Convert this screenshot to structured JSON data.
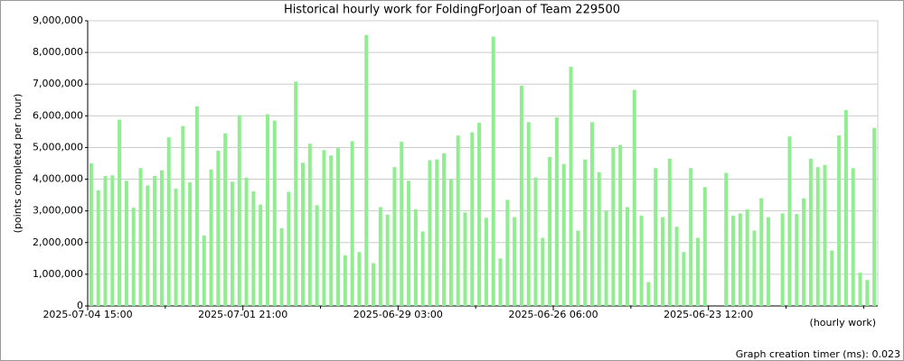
{
  "chart_data": {
    "type": "bar",
    "title": "Historical hourly work for FoldingForJoan of Team 229500",
    "y_label": "(points completed per hour)",
    "x_label": "(hourly work)",
    "footer": "Graph creation timer (ms): 0.023",
    "color": "#90ee90",
    "grid": true,
    "ylim": [
      0,
      9000000
    ],
    "yticks": [
      0,
      {
        "value": 1000000,
        "label": "1,000,000"
      },
      {
        "value": 2000000,
        "label": "2,000,000"
      },
      {
        "value": 3000000,
        "label": "3,000,000"
      },
      {
        "value": 4000000,
        "label": "4,000,000"
      },
      {
        "value": 5000000,
        "label": "5,000,000"
      },
      {
        "value": 6000000,
        "label": "6,000,000"
      },
      {
        "value": 7000000,
        "label": "7,000,000"
      },
      {
        "value": 8000000,
        "label": "8,000,000"
      },
      {
        "value": 9000000,
        "label": "9,000,000"
      }
    ],
    "categories": [
      "2025-07-04 15:00",
      null,
      null,
      null,
      null,
      null,
      null,
      null,
      null,
      null,
      null,
      null,
      null,
      null,
      null,
      null,
      null,
      null,
      null,
      null,
      null,
      null,
      "2025-07-01 21:00",
      null,
      null,
      null,
      null,
      null,
      null,
      null,
      null,
      null,
      null,
      null,
      null,
      null,
      null,
      null,
      null,
      null,
      null,
      null,
      null,
      null,
      "2025-06-29 03:00",
      null,
      null,
      null,
      null,
      null,
      null,
      null,
      null,
      null,
      null,
      null,
      null,
      null,
      null,
      null,
      null,
      null,
      null,
      null,
      null,
      null,
      "2025-06-26 06:00",
      null,
      null,
      null,
      null,
      null,
      null,
      null,
      null,
      null,
      null,
      null,
      null,
      null,
      null,
      null,
      null,
      null,
      null,
      null,
      null,
      null,
      "2025-06-23 12:00",
      null,
      null,
      null,
      null,
      null,
      null,
      null,
      null,
      null,
      null,
      null,
      null,
      null,
      null,
      null,
      null,
      null,
      null,
      null,
      null,
      null,
      null,
      null
    ],
    "values": [
      4500000,
      3650000,
      4100000,
      4120000,
      5880000,
      3950000,
      3100000,
      4350000,
      3800000,
      4100000,
      4280000,
      5320000,
      3700000,
      5680000,
      3900000,
      6300000,
      2220000,
      4300000,
      4900000,
      5450000,
      3920000,
      6020000,
      4050000,
      3620000,
      3200000,
      6050000,
      5850000,
      2450000,
      3600000,
      7080000,
      4520000,
      5120000,
      3180000,
      4920000,
      4750000,
      4980000,
      1600000,
      5200000,
      1700000,
      8550000,
      1350000,
      3120000,
      2880000,
      4380000,
      5180000,
      3950000,
      3050000,
      2350000,
      4600000,
      4620000,
      4820000,
      4000000,
      5380000,
      2950000,
      5480000,
      5780000,
      2780000,
      8500000,
      1500000,
      3350000,
      2800000,
      6950000,
      5800000,
      4050000,
      2150000,
      4700000,
      5950000,
      4480000,
      7550000,
      2380000,
      4620000,
      5800000,
      4220000,
      3000000,
      5000000,
      5080000,
      3120000,
      6820000,
      2850000,
      750000,
      4350000,
      2800000,
      4650000,
      2500000,
      1700000,
      4350000,
      2150000,
      3750000,
      null,
      null,
      4200000,
      2850000,
      2920000,
      3050000,
      2380000,
      3400000,
      2800000,
      null,
      2920000,
      5350000,
      2900000,
      3400000,
      4650000,
      4380000,
      4450000,
      1750000,
      5380000,
      6180000,
      4350000,
      1050000,
      820000,
      5620000
    ]
  }
}
